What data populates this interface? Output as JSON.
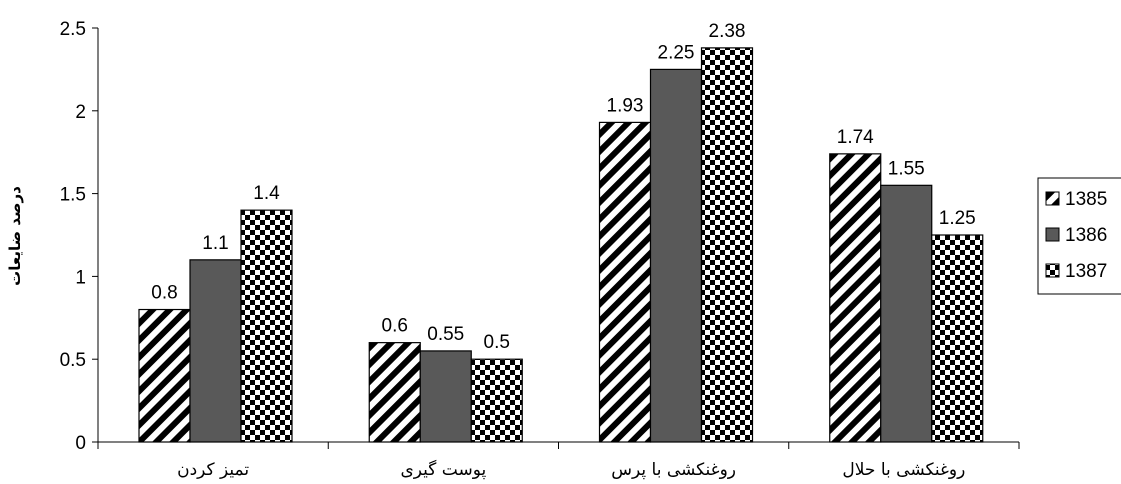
{
  "chart_data": {
    "type": "bar",
    "categories": [
      "تمیز کردن",
      "پوست گیری",
      "روغنکشی با پرس",
      "روغنکشی با حلال"
    ],
    "series": [
      {
        "name": "1385",
        "values": [
          0.8,
          0.6,
          1.93,
          1.74
        ],
        "pattern": "diagonal-hatch",
        "color": "#000000"
      },
      {
        "name": "1386",
        "values": [
          1.1,
          0.55,
          2.25,
          1.55
        ],
        "pattern": "solid",
        "color": "#595959"
      },
      {
        "name": "1387",
        "values": [
          1.4,
          0.5,
          2.38,
          1.25
        ],
        "pattern": "checkerboard",
        "color": "#000000"
      }
    ],
    "data_labels": [
      [
        "0.8",
        "0.6",
        "1.93",
        "1.74"
      ],
      [
        "1.1",
        "0.55",
        "2.25",
        "1.55"
      ],
      [
        "1.4",
        "0.5",
        "2.38",
        "1.25"
      ]
    ],
    "title": "",
    "xlabel": "",
    "ylabel": "درصد ضایعات",
    "ylim": [
      0,
      2.5
    ],
    "yticks": [
      "0",
      "0.5",
      "1",
      "1.5",
      "2",
      "2.5"
    ],
    "grid": false,
    "legend": "right"
  }
}
